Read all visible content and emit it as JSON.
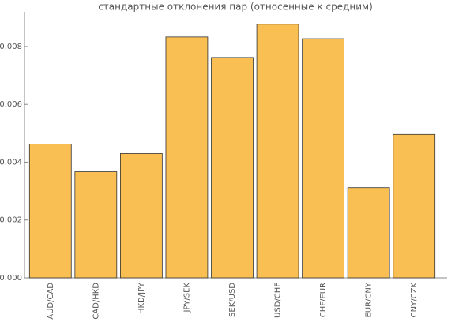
{
  "chart_data": {
    "type": "bar",
    "title": "стандартные отклонения пар (относенные к средним)",
    "categories": [
      "AUD/CAD",
      "CAD/HKD",
      "HKD/JPY",
      "JPY/SEK",
      "SEK/USD",
      "USD/CHF",
      "CHF/EUR",
      "EUR/CNY",
      "CNY/CZK"
    ],
    "values": [
      0.00463,
      0.00367,
      0.0043,
      0.00833,
      0.00762,
      0.00877,
      0.00827,
      0.00312,
      0.00496
    ],
    "color": "#f9bf52",
    "ylim": [
      0,
      0.0092
    ],
    "yticks": [
      {
        "value": 0,
        "label": "0.000"
      },
      {
        "value": 0.002,
        "label": "0.002"
      },
      {
        "value": 0.004,
        "label": "0.004"
      },
      {
        "value": 0.006,
        "label": "0.006"
      },
      {
        "value": 0.008,
        "label": "0.008"
      }
    ]
  }
}
